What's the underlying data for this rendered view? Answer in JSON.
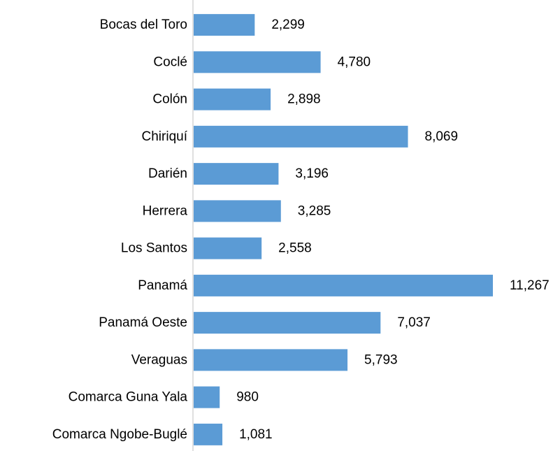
{
  "chart_data": {
    "type": "bar",
    "orientation": "horizontal",
    "categories": [
      "Bocas del Toro",
      "Coclé",
      "Colón",
      "Chiriquí",
      "Darién",
      "Herrera",
      "Los Santos",
      "Panamá",
      "Panamá Oeste",
      "Veraguas",
      "Comarca Guna Yala",
      "Comarca Ngobe-Buglé"
    ],
    "values": [
      2299,
      4780,
      2898,
      8069,
      3196,
      3285,
      2558,
      11267,
      7037,
      5793,
      980,
      1081
    ],
    "value_labels": [
      "2,299",
      "4,780",
      "2,898",
      "8,069",
      "3,196",
      "3,285",
      "2,558",
      "11,267",
      "7,037",
      "5,793",
      "980",
      "1,081"
    ],
    "bar_color": "#5B9BD5",
    "axis_color": "#BFBFBF",
    "xlim": [
      0,
      11267
    ],
    "grid": false,
    "legend": "none"
  }
}
